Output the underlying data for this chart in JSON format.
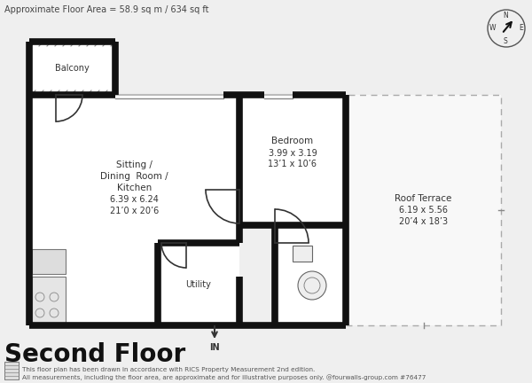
{
  "bg_color": "#efefef",
  "wall_color": "#111111",
  "room_fill": "#ffffff",
  "terrace_fill": "#f5f5f5",
  "title": "Second Floor",
  "top_text": "Approximate Floor Area = 58.9 sq m / 634 sq ft",
  "footer_line1": "This floor plan has been drawn in accordance with RICS Property Measurement 2nd edition.",
  "footer_line2": "All measurements, including the floor area, are approximate and for illustrative purposes only. @fourwalls-group.com #76477",
  "room_labels": {
    "living": [
      "Sitting /",
      "Dining  Room /",
      "Kitchen",
      "6.39 x 6.24",
      "21’0 x 20’6"
    ],
    "bedroom": [
      "Bedroom",
      "3.99 x 3.19",
      "13’1 x 10’6"
    ],
    "terrace": [
      "Roof Terrace",
      "6.19 x 5.56",
      "20’4 x 18’3"
    ],
    "utility": [
      "Utility"
    ],
    "balcony": [
      "Balcony"
    ]
  }
}
